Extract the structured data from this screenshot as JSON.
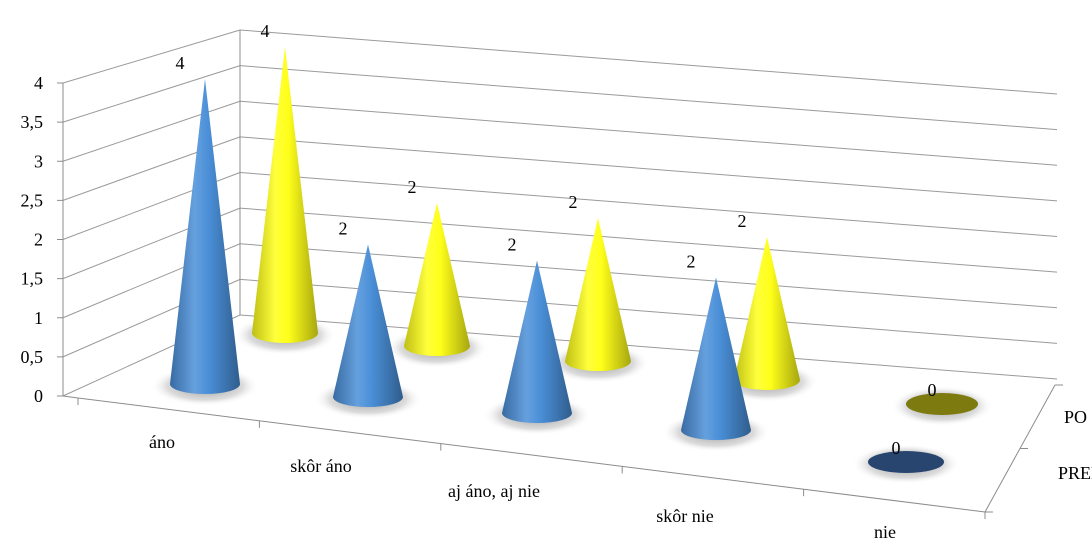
{
  "chart_data": {
    "type": "bar",
    "bar_shape": "cone",
    "perspective": "3d",
    "categories": [
      "áno",
      "skôr áno",
      "aj áno, aj nie",
      "skôr nie",
      "nie"
    ],
    "series": [
      {
        "name": "PRED",
        "values": [
          4,
          2,
          2,
          2,
          0
        ],
        "color": "#4a8fd8"
      },
      {
        "name": "PO",
        "values": [
          4,
          2,
          2,
          2,
          0
        ],
        "color": "#ffff1a"
      }
    ],
    "zero_marker_colors": {
      "PRED": "#27456f",
      "PO": "#7d7a10"
    },
    "y_ticks": [
      "0",
      "0,5",
      "1",
      "1,5",
      "2",
      "2,5",
      "3",
      "3,5",
      "4"
    ],
    "ylim": [
      0,
      4
    ],
    "data_labels": true,
    "grid": true
  }
}
